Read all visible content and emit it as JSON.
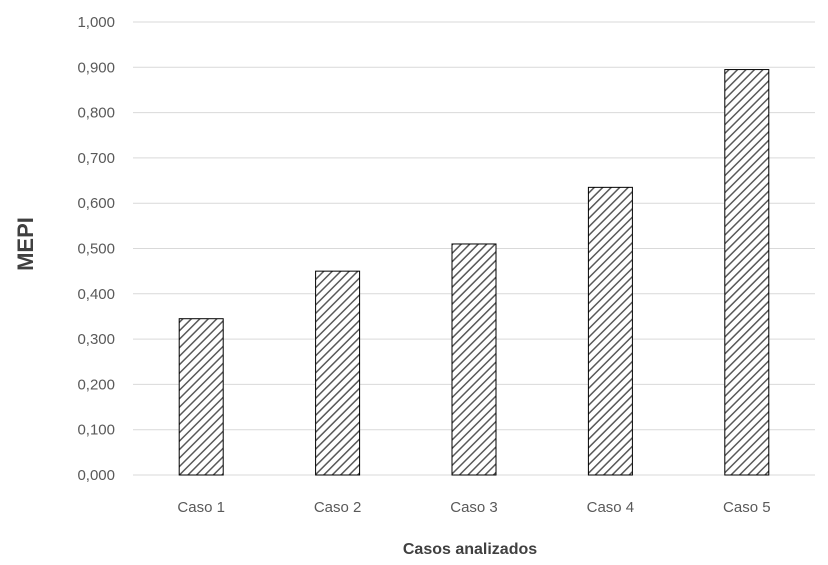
{
  "chart_data": {
    "type": "bar",
    "title": "",
    "xlabel": "Casos analizados",
    "ylabel": "MEPI",
    "categories": [
      "Caso 1",
      "Caso 2",
      "Caso 3",
      "Caso 4",
      "Caso 5"
    ],
    "values": [
      0.345,
      0.45,
      0.51,
      0.635,
      0.895
    ],
    "ylim": [
      0,
      1
    ],
    "yticks": [
      "0,000",
      "0,100",
      "0,200",
      "0,300",
      "0,400",
      "0,500",
      "0,600",
      "0,700",
      "0,800",
      "0,900",
      "1,000"
    ],
    "grid": true,
    "legend": "none",
    "bar_fill": "hatched diagonal lines",
    "colors": {
      "bar_stroke": "#000000",
      "hatch": "#595959",
      "grid": "#d9d9d9",
      "tick_text": "#595959",
      "axis_title": "#404040"
    }
  }
}
